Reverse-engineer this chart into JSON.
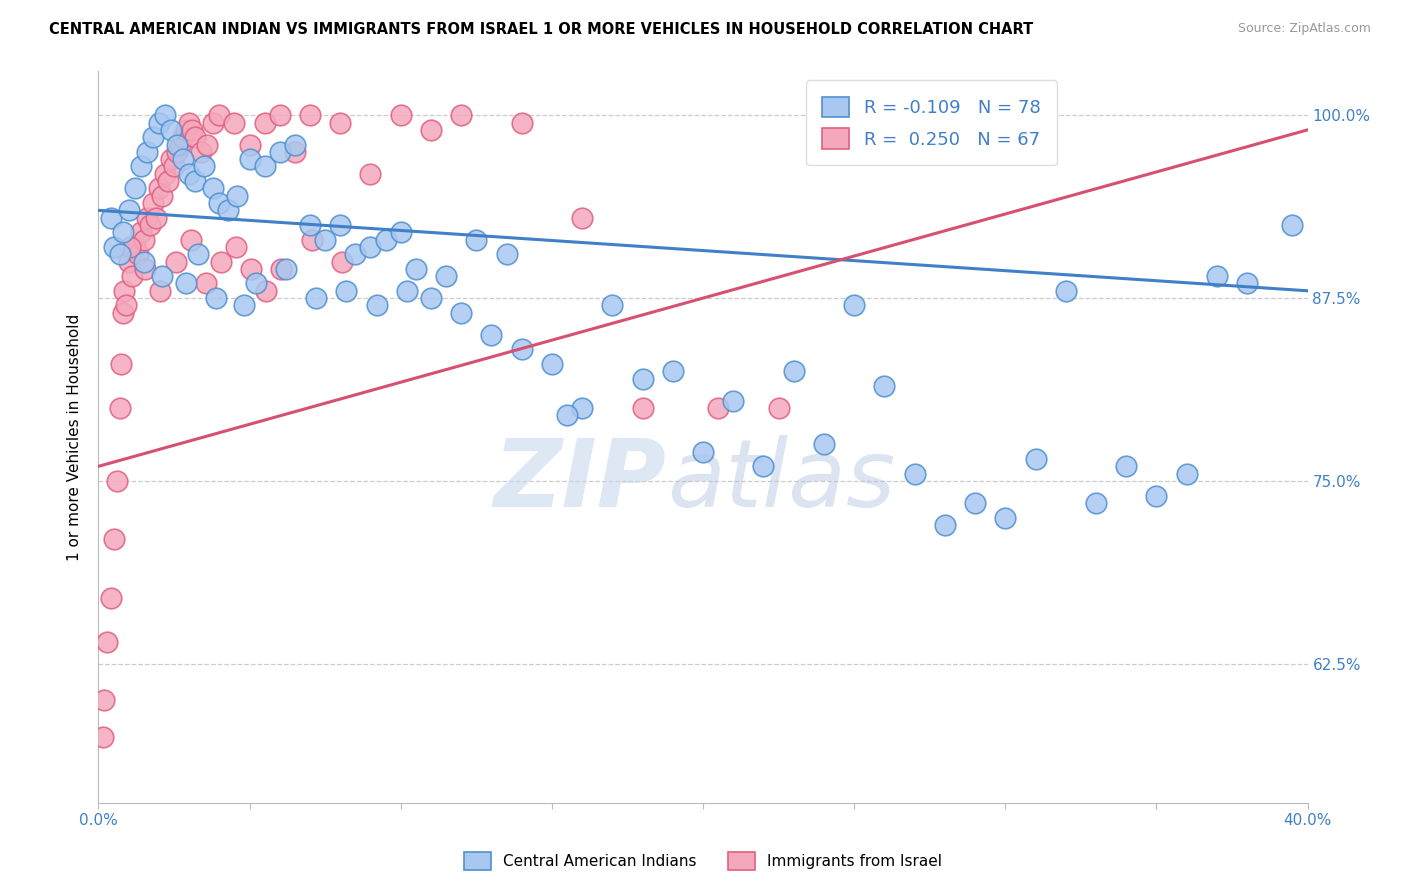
{
  "title": "CENTRAL AMERICAN INDIAN VS IMMIGRANTS FROM ISRAEL 1 OR MORE VEHICLES IN HOUSEHOLD CORRELATION CHART",
  "source": "Source: ZipAtlas.com",
  "ylabel": "1 or more Vehicles in Household",
  "ytick_vals": [
    100.0,
    87.5,
    75.0,
    62.5
  ],
  "ytick_labels": [
    "100.0%",
    "87.5%",
    "75.0%",
    "62.5%"
  ],
  "xmin": 0.0,
  "xmax": 40.0,
  "ymin": 53.0,
  "ymax": 103.0,
  "blue_R": -0.109,
  "blue_N": 78,
  "pink_R": 0.25,
  "pink_N": 67,
  "blue_fill": "#A8C8F0",
  "pink_fill": "#F4A8BC",
  "blue_edge": "#5090D0",
  "pink_edge": "#E06080",
  "blue_line": "#4080C8",
  "pink_line": "#D85070",
  "legend_label_blue": "Central American Indians",
  "legend_label_pink": "Immigrants from Israel",
  "watermark_zip": "ZIP",
  "watermark_atlas": "atlas",
  "blue_line_x0": 0.0,
  "blue_line_y0": 93.5,
  "blue_line_x1": 40.0,
  "blue_line_y1": 88.0,
  "pink_line_x0": 0.0,
  "pink_line_y0": 76.0,
  "pink_line_x1": 40.0,
  "pink_line_y1": 99.0,
  "blue_x": [
    0.4,
    0.5,
    0.7,
    0.8,
    1.0,
    1.2,
    1.4,
    1.6,
    1.8,
    2.0,
    2.2,
    2.4,
    2.6,
    2.8,
    3.0,
    3.2,
    3.5,
    3.8,
    4.0,
    4.3,
    4.6,
    5.0,
    5.5,
    6.0,
    6.5,
    7.0,
    7.5,
    8.0,
    8.5,
    9.0,
    9.5,
    10.0,
    10.5,
    11.0,
    12.0,
    13.0,
    14.0,
    15.0,
    16.0,
    17.0,
    18.0,
    19.0,
    20.0,
    21.0,
    22.0,
    23.0,
    24.0,
    25.0,
    26.0,
    27.0,
    28.0,
    29.0,
    30.0,
    31.0,
    32.0,
    33.0,
    34.0,
    35.0,
    36.0,
    37.0,
    38.0,
    39.5,
    1.5,
    2.1,
    2.9,
    3.3,
    3.9,
    4.8,
    5.2,
    6.2,
    7.2,
    8.2,
    9.2,
    10.2,
    11.5,
    12.5,
    13.5,
    15.5
  ],
  "blue_y": [
    93.0,
    91.0,
    90.5,
    92.0,
    93.5,
    95.0,
    96.5,
    97.5,
    98.5,
    99.5,
    100.0,
    99.0,
    98.0,
    97.0,
    96.0,
    95.5,
    96.5,
    95.0,
    94.0,
    93.5,
    94.5,
    97.0,
    96.5,
    97.5,
    98.0,
    92.5,
    91.5,
    92.5,
    90.5,
    91.0,
    91.5,
    92.0,
    89.5,
    87.5,
    86.5,
    85.0,
    84.0,
    83.0,
    80.0,
    87.0,
    82.0,
    82.5,
    77.0,
    80.5,
    76.0,
    82.5,
    77.5,
    87.0,
    81.5,
    75.5,
    72.0,
    73.5,
    72.5,
    76.5,
    88.0,
    73.5,
    76.0,
    74.0,
    75.5,
    89.0,
    88.5,
    92.5,
    90.0,
    89.0,
    88.5,
    90.5,
    87.5,
    87.0,
    88.5,
    89.5,
    87.5,
    88.0,
    87.0,
    88.0,
    89.0,
    91.5,
    90.5,
    79.5
  ],
  "pink_x": [
    0.15,
    0.2,
    0.3,
    0.4,
    0.5,
    0.6,
    0.7,
    0.75,
    0.8,
    0.85,
    0.9,
    1.0,
    1.1,
    1.2,
    1.3,
    1.4,
    1.5,
    1.6,
    1.7,
    1.8,
    1.9,
    2.0,
    2.1,
    2.2,
    2.3,
    2.4,
    2.5,
    2.6,
    2.7,
    2.8,
    2.9,
    3.0,
    3.1,
    3.2,
    3.4,
    3.6,
    3.8,
    4.0,
    4.5,
    5.0,
    5.5,
    6.0,
    6.5,
    7.0,
    8.0,
    9.0,
    10.0,
    11.0,
    12.0,
    14.0,
    16.0,
    18.0,
    20.5,
    22.5,
    1.05,
    1.55,
    2.05,
    2.55,
    3.05,
    3.55,
    4.05,
    4.55,
    5.05,
    5.55,
    6.05,
    7.05,
    8.05
  ],
  "pink_y": [
    57.5,
    60.0,
    64.0,
    67.0,
    71.0,
    75.0,
    80.0,
    83.0,
    86.5,
    88.0,
    87.0,
    90.0,
    89.0,
    91.0,
    90.5,
    92.0,
    91.5,
    93.0,
    92.5,
    94.0,
    93.0,
    95.0,
    94.5,
    96.0,
    95.5,
    97.0,
    96.5,
    97.5,
    98.0,
    98.5,
    99.0,
    99.5,
    99.0,
    98.5,
    97.5,
    98.0,
    99.5,
    100.0,
    99.5,
    98.0,
    99.5,
    100.0,
    97.5,
    100.0,
    99.5,
    96.0,
    100.0,
    99.0,
    100.0,
    99.5,
    93.0,
    80.0,
    80.0,
    80.0,
    91.0,
    89.5,
    88.0,
    90.0,
    91.5,
    88.5,
    90.0,
    91.0,
    89.5,
    88.0,
    89.5,
    91.5,
    90.0
  ]
}
